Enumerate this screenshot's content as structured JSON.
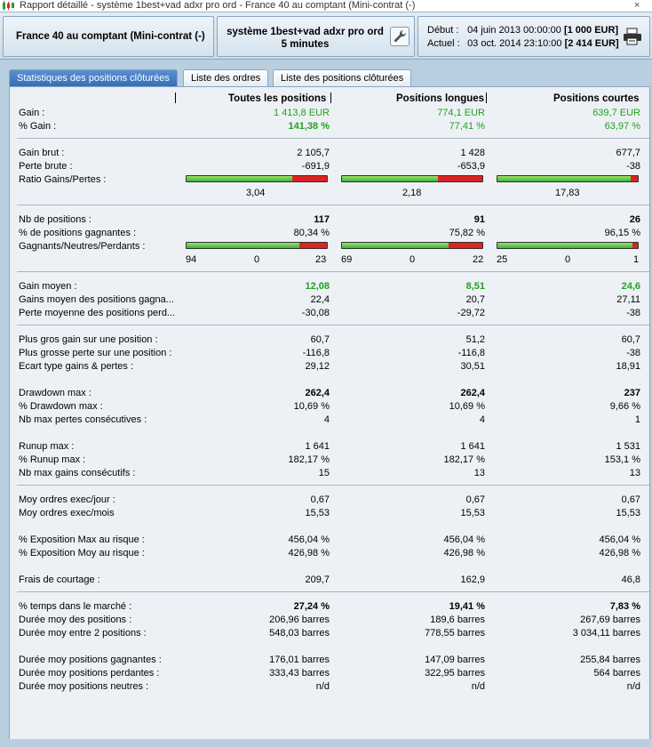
{
  "window": {
    "title": "Rapport détaillé - système 1best+vad adxr pro ord - France 40 au comptant (Mini-contrat  (-)",
    "controls": [
      "–",
      "□",
      "×"
    ]
  },
  "header": {
    "instrument": "France 40 au comptant (Mini-contrat  (-)",
    "system_line1": "système 1best+vad adxr pro ord",
    "system_line2": "5 minutes",
    "debut_label": "Début :",
    "debut_value": "04 juin 2013 00:00:00",
    "debut_capital": "[1 000 EUR]",
    "actuel_label": "Actuel :",
    "actuel_value": "03 oct. 2014 23:10:00",
    "actuel_capital": "[2 414 EUR]"
  },
  "tabs": [
    {
      "label": "Statistiques des positions clôturées",
      "active": true
    },
    {
      "label": "Liste des ordres",
      "active": false
    },
    {
      "label": "Liste des positions clôturées",
      "active": false
    }
  ],
  "columns": [
    "Toutes les positions",
    "Positions longues",
    "Positions courtes"
  ],
  "stats": {
    "gain": {
      "label": "Gain :",
      "v": [
        "1 413,8 EUR",
        "774,1 EUR",
        "639,7 EUR"
      ]
    },
    "pct_gain": {
      "label": "% Gain :",
      "v": [
        "141,38 %",
        "77,41 %",
        "63,97 %"
      ]
    },
    "gain_brut": {
      "label": "Gain brut :",
      "v": [
        "2 105,7",
        "1 428",
        "677,7"
      ]
    },
    "perte_brute": {
      "label": "Perte brute :",
      "v": [
        "-691,9",
        "-653,9",
        "-38"
      ]
    },
    "ratio": {
      "label": "Ratio Gains/Pertes :",
      "v": [
        "3,04",
        "2,18",
        "17,83"
      ],
      "fill": [
        0.753,
        0.686,
        0.947
      ]
    },
    "nb_positions": {
      "label": "Nb de positions :",
      "v": [
        "117",
        "91",
        "26"
      ]
    },
    "pct_gagnantes": {
      "label": "% de positions gagnantes :",
      "v": [
        "80,34 %",
        "75,82 %",
        "96,15 %"
      ]
    },
    "gnp": {
      "label": "Gagnants/Neutres/Perdants :",
      "fill": [
        0.803,
        0.758,
        0.962
      ],
      "counts": [
        [
          "94",
          "0",
          "23"
        ],
        [
          "69",
          "0",
          "22"
        ],
        [
          "25",
          "0",
          "1"
        ]
      ]
    },
    "gain_moyen": {
      "label": "Gain moyen :",
      "v": [
        "12,08",
        "8,51",
        "24,6"
      ]
    },
    "gains_moyen_gagna": {
      "label": "Gains moyen des positions gagna...",
      "v": [
        "22,4",
        "20,7",
        "27,11"
      ]
    },
    "perte_moyenne": {
      "label": "Perte moyenne des positions perd...",
      "v": [
        "-30,08",
        "-29,72",
        "-38"
      ]
    },
    "plus_gros_gain": {
      "label": "Plus gros gain sur une position :",
      "v": [
        "60,7",
        "51,2",
        "60,7"
      ]
    },
    "plus_grosse_perte": {
      "label": "Plus grosse perte sur une position :",
      "v": [
        "-116,8",
        "-116,8",
        "-38"
      ]
    },
    "ecart_type": {
      "label": "Ecart type gains & pertes :",
      "v": [
        "29,12",
        "30,51",
        "18,91"
      ]
    },
    "drawdown_max": {
      "label": "Drawdown max :",
      "v": [
        "262,4",
        "262,4",
        "237"
      ]
    },
    "pct_drawdown": {
      "label": "% Drawdown max :",
      "v": [
        "10,69 %",
        "10,69 %",
        "9,66 %"
      ]
    },
    "nb_pertes_consec": {
      "label": "Nb max pertes consécutives :",
      "v": [
        "4",
        "4",
        "1"
      ]
    },
    "runup_max": {
      "label": "Runup max :",
      "v": [
        "1 641",
        "1 641",
        "1 531"
      ]
    },
    "pct_runup": {
      "label": "% Runup max :",
      "v": [
        "182,17 %",
        "182,17 %",
        "153,1 %"
      ]
    },
    "nb_gains_consec": {
      "label": "Nb max gains consécutifs :",
      "v": [
        "15",
        "13",
        "13"
      ]
    },
    "ordres_jour": {
      "label": "Moy ordres exec/jour :",
      "v": [
        "0,67",
        "0,67",
        "0,67"
      ]
    },
    "ordres_mois": {
      "label": "Moy ordres exec/mois",
      "v": [
        "15,53",
        "15,53",
        "15,53"
      ]
    },
    "expo_max": {
      "label": "% Exposition Max au risque :",
      "v": [
        "456,04 %",
        "456,04 %",
        "456,04 %"
      ]
    },
    "expo_moy": {
      "label": "% Exposition Moy au risque :",
      "v": [
        "426,98 %",
        "426,98 %",
        "426,98 %"
      ]
    },
    "frais": {
      "label": "Frais de courtage :",
      "v": [
        "209,7",
        "162,9",
        "46,8"
      ]
    },
    "temps_marche": {
      "label": "% temps dans le marché :",
      "v": [
        "27,24 %",
        "19,41 %",
        "7,83 %"
      ]
    },
    "duree_positions": {
      "label": "Durée moy des positions :",
      "v": [
        "206,96 barres",
        "189,6 barres",
        "267,69 barres"
      ]
    },
    "duree_entre": {
      "label": "Durée moy entre 2 positions :",
      "v": [
        "548,03 barres",
        "778,55 barres",
        "3 034,11 barres"
      ]
    },
    "duree_gagnantes": {
      "label": "Durée moy positions gagnantes :",
      "v": [
        "176,01 barres",
        "147,09 barres",
        "255,84 barres"
      ]
    },
    "duree_perdantes": {
      "label": "Durée moy positions perdantes :",
      "v": [
        "333,43 barres",
        "322,95 barres",
        "564 barres"
      ]
    },
    "duree_neutres": {
      "label": "Durée moy positions neutres :",
      "v": [
        "n/d",
        "n/d",
        "n/d"
      ]
    }
  },
  "colors": {
    "positive": "#1fa21f",
    "bar_green": "#3ab33a",
    "bar_red": "#dd2222",
    "tab_active": "#2f6db8"
  }
}
